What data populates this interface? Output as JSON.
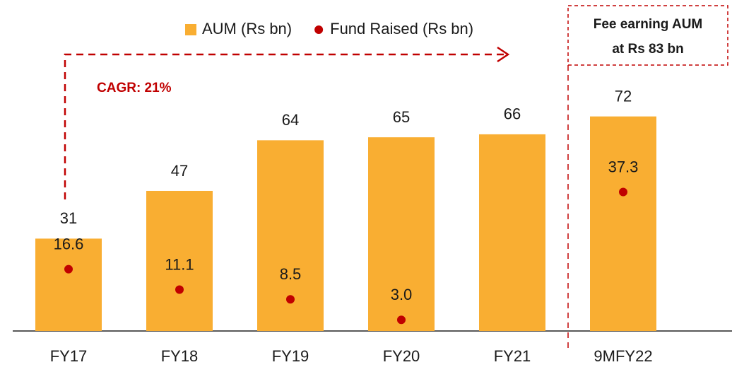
{
  "chart_data": {
    "type": "bar",
    "categories": [
      "FY17",
      "FY18",
      "FY19",
      "FY20",
      "FY21",
      "9MFY22"
    ],
    "series": [
      {
        "name": "AUM (Rs bn)",
        "type": "bar",
        "color": "#f9ae32",
        "values": [
          31,
          47,
          64,
          65,
          66,
          72
        ]
      },
      {
        "name": "Fund Raised (Rs bn)",
        "type": "scatter",
        "axis": "y2",
        "color": "#c00000",
        "values": [
          16.6,
          11.1,
          8.5,
          3.0,
          null,
          37.3
        ],
        "value_labels": [
          "16.6",
          "11.1",
          "8.5",
          "3.0",
          null,
          "37.3"
        ]
      }
    ],
    "ylim": [
      0,
      75
    ],
    "y2lim": [
      0,
      60
    ],
    "legend": "top",
    "annotations": {
      "cagr": "CAGR: 21%",
      "fee_box": [
        "Fee earning AUM",
        "at Rs 83 bn"
      ]
    }
  }
}
